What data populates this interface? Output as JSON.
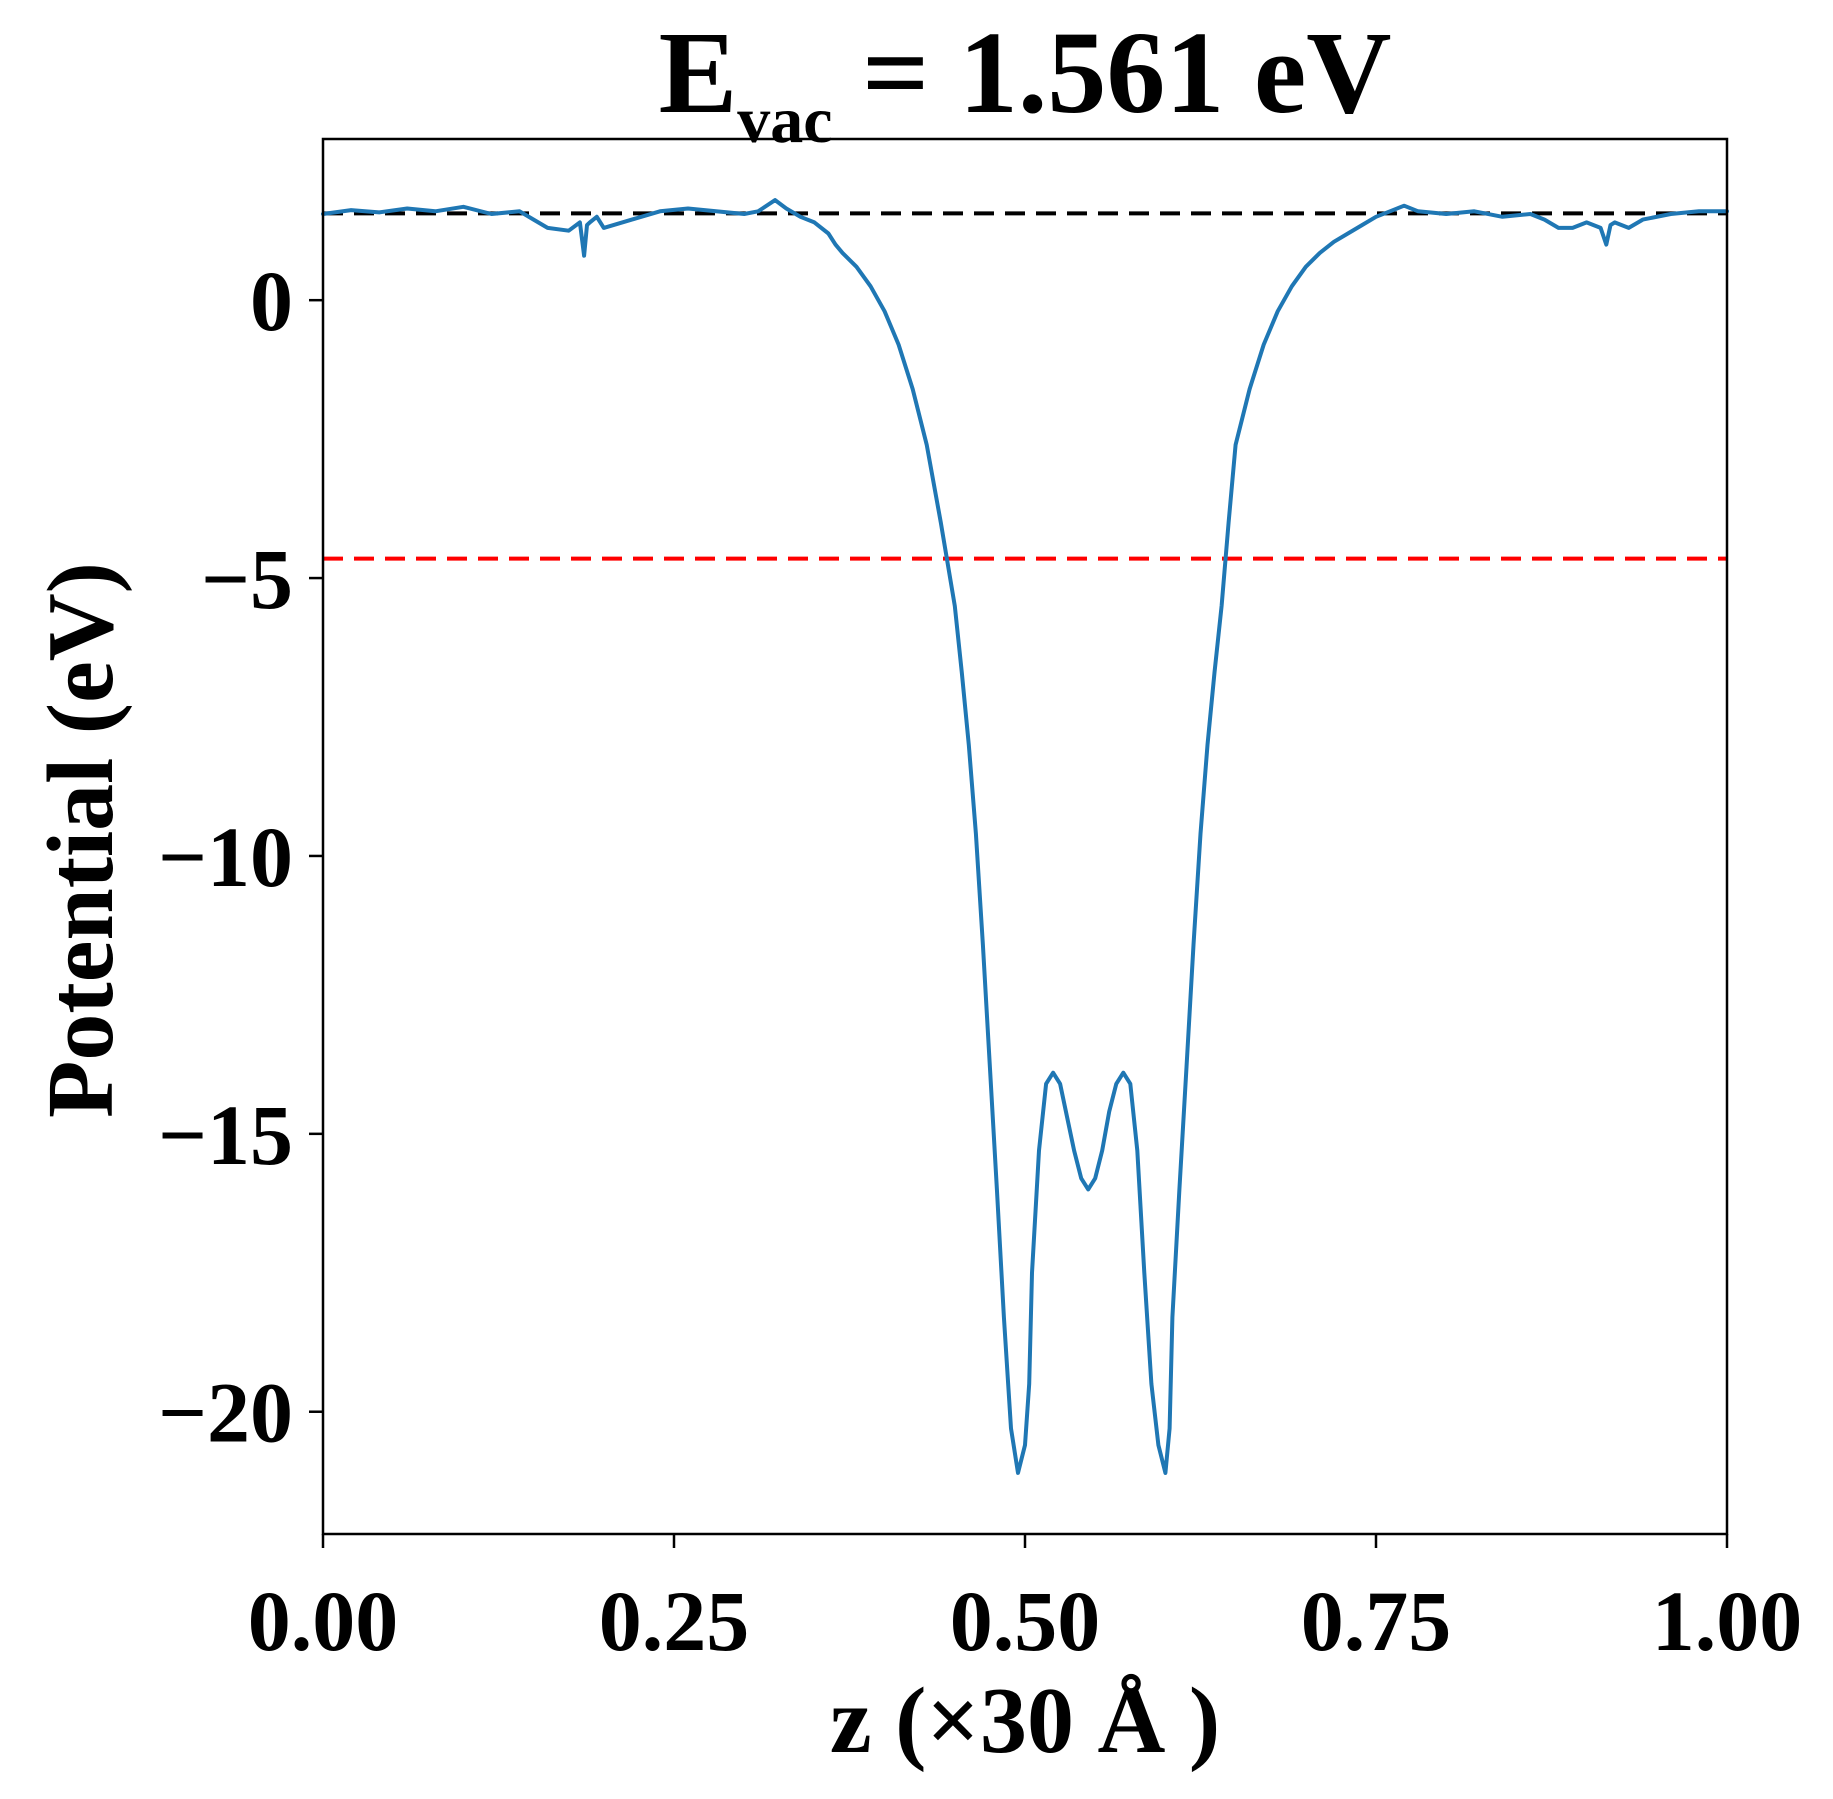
{
  "chart_data": {
    "type": "line",
    "title": {
      "symbol": "E",
      "subscript": "vac",
      "rest": " = 1.561 eV"
    },
    "xlabel": "z (×30 Å )",
    "ylabel": "Potential (eV)",
    "xlim": [
      0.0,
      1.0
    ],
    "ylim": [
      -22.2,
      2.9
    ],
    "xticks": [
      0.0,
      0.25,
      0.5,
      0.75,
      1.0
    ],
    "xtick_labels": [
      "0.00",
      "0.25",
      "0.50",
      "0.75",
      "1.00"
    ],
    "yticks": [
      0,
      -5,
      -10,
      -15,
      -20
    ],
    "ytick_labels": [
      "0",
      "−5",
      "−10",
      "−15",
      "−20"
    ],
    "grid": false,
    "reference_lines": [
      {
        "y": 1.561,
        "color": "#000000",
        "style": "dashed"
      },
      {
        "y": -4.65,
        "color": "#ff0000",
        "style": "dashed"
      }
    ],
    "series": [
      {
        "color": "#1f77b4",
        "x": [
          0.0,
          0.02,
          0.04,
          0.06,
          0.08,
          0.1,
          0.12,
          0.14,
          0.15,
          0.16,
          0.175,
          0.183,
          0.186,
          0.188,
          0.19,
          0.195,
          0.2,
          0.22,
          0.24,
          0.26,
          0.28,
          0.3,
          0.31,
          0.322,
          0.33,
          0.34,
          0.35,
          0.36,
          0.365,
          0.37,
          0.38,
          0.39,
          0.4,
          0.41,
          0.42,
          0.43,
          0.44,
          0.45,
          0.455,
          0.46,
          0.465,
          0.47,
          0.475,
          0.48,
          0.485,
          0.49,
          0.495,
          0.5,
          0.503,
          0.505,
          0.51,
          0.515,
          0.52,
          0.525,
          0.53,
          0.535,
          0.54,
          0.545,
          0.55,
          0.555,
          0.56,
          0.565,
          0.57,
          0.575,
          0.58,
          0.585,
          0.59,
          0.595,
          0.6,
          0.603,
          0.605,
          0.61,
          0.615,
          0.62,
          0.625,
          0.63,
          0.635,
          0.64,
          0.645,
          0.65,
          0.66,
          0.67,
          0.68,
          0.69,
          0.7,
          0.71,
          0.72,
          0.73,
          0.74,
          0.75,
          0.76,
          0.77,
          0.78,
          0.8,
          0.82,
          0.84,
          0.86,
          0.87,
          0.88,
          0.89,
          0.9,
          0.91,
          0.914,
          0.917,
          0.92,
          0.93,
          0.94,
          0.96,
          0.98,
          1.0
        ],
        "y": [
          1.55,
          1.62,
          1.58,
          1.65,
          1.6,
          1.68,
          1.55,
          1.6,
          1.45,
          1.3,
          1.25,
          1.4,
          0.8,
          1.35,
          1.4,
          1.5,
          1.3,
          1.45,
          1.6,
          1.65,
          1.6,
          1.55,
          1.6,
          1.8,
          1.65,
          1.5,
          1.4,
          1.2,
          1.0,
          0.85,
          0.6,
          0.25,
          -0.2,
          -0.8,
          -1.6,
          -2.6,
          -4.0,
          -5.5,
          -6.7,
          -8.0,
          -9.6,
          -11.6,
          -13.8,
          -16.0,
          -18.3,
          -20.3,
          -21.1,
          -20.6,
          -19.5,
          -17.5,
          -15.3,
          -14.1,
          -13.9,
          -14.1,
          -14.7,
          -15.3,
          -15.8,
          -16.0,
          -15.8,
          -15.3,
          -14.6,
          -14.1,
          -13.9,
          -14.1,
          -15.3,
          -17.5,
          -19.5,
          -20.6,
          -21.1,
          -20.3,
          -18.3,
          -16.0,
          -13.8,
          -11.6,
          -9.6,
          -8.0,
          -6.7,
          -5.5,
          -4.0,
          -2.6,
          -1.6,
          -0.8,
          -0.2,
          0.25,
          0.6,
          0.85,
          1.05,
          1.2,
          1.35,
          1.5,
          1.6,
          1.7,
          1.6,
          1.55,
          1.6,
          1.5,
          1.55,
          1.45,
          1.3,
          1.3,
          1.4,
          1.3,
          1.0,
          1.35,
          1.4,
          1.3,
          1.45,
          1.55,
          1.6,
          1.6
        ]
      }
    ]
  }
}
